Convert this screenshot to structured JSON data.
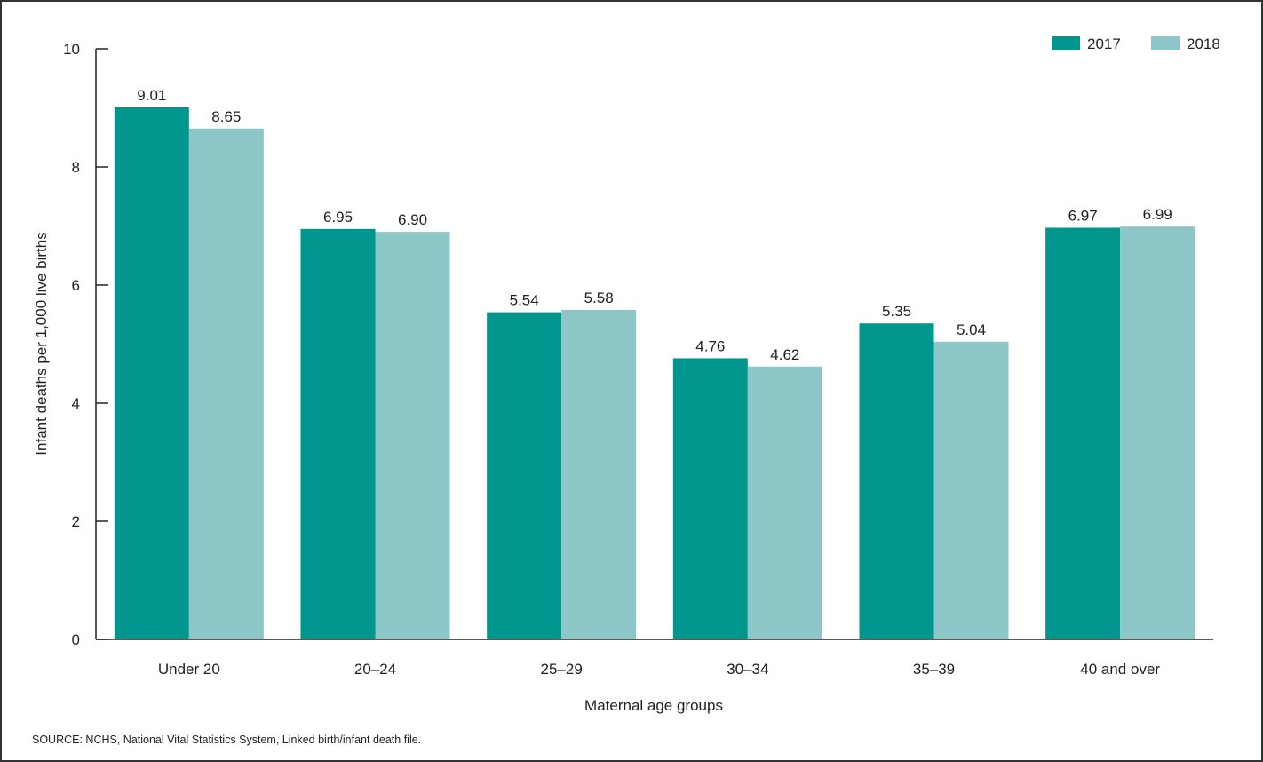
{
  "chart_data": {
    "type": "bar",
    "categories": [
      "Under 20",
      "20–24",
      "25–29",
      "30–34",
      "35–39",
      "40 and over"
    ],
    "series": [
      {
        "name": "2017",
        "color": "#00958d",
        "values": [
          9.01,
          6.95,
          5.54,
          4.76,
          5.35,
          6.97
        ],
        "labels": [
          "9.01",
          "6.95",
          "5.54",
          "4.76",
          "5.35",
          "6.97"
        ]
      },
      {
        "name": "2018",
        "color": "#8cc6c6",
        "values": [
          8.65,
          6.9,
          5.58,
          4.62,
          5.04,
          6.99
        ],
        "labels": [
          "8.65",
          "6.90",
          "5.58",
          "4.62",
          "5.04",
          "6.99"
        ]
      }
    ],
    "xlabel": "Maternal age groups",
    "ylabel": "Infant deaths per 1,000 live births",
    "ylim": [
      0,
      10
    ],
    "yticks": [
      "0",
      "2",
      "4",
      "6",
      "8",
      "10"
    ],
    "grid": false,
    "legend_position": "top-right"
  },
  "source_note": "SOURCE: NCHS, National Vital Statistics System, Linked birth/infant death file."
}
